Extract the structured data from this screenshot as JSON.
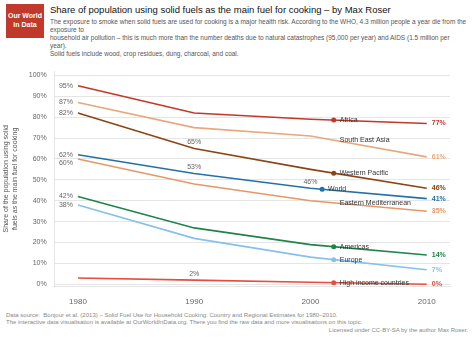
{
  "chart_data": {
    "type": "line",
    "title": "Share of population using solid fuels as the main fuel for cooking – by Max Roser",
    "subtitle": "The exposure to smoke when solid fuels are used for cooking is a major health risk. According to the WHO, 4.3 million people a year die from the exposure to\nhousehold air pollution – this is much more than the number deaths due to natural catastrophes (95,000 per year) and AIDS (1.5 million per year).\nSolid fuels include wood, crop residues, dung, charcoal, and coal.",
    "y_label": "Share of the population using solid fuels as the main fuel for cooking",
    "logo": {
      "text": "Our World\nin Data",
      "color": "#c0392b"
    },
    "footer_left": [
      "Data source:  Bonjour et al. (2013) – Solid Fuel Use for Household Cooking: Country and Regional Estimates for 1980–2010.",
      "The interactive data visualisation is available at OurWorldInData.org. There you find the raw data and more visualisations on this topic."
    ],
    "footer_right": "Licensed under CC-BY-SA by the author Max Roser.",
    "x": [
      1980,
      1990,
      2000,
      2010
    ],
    "series": [
      {
        "name": "Africa",
        "color": "#c0392b",
        "values": [
          95,
          82,
          79,
          77
        ]
      },
      {
        "name": "South East Asia",
        "color": "#e8a87c",
        "values": [
          87,
          75,
          71,
          61
        ]
      },
      {
        "name": "Western Pacific",
        "color": "#8B4513",
        "values": [
          82,
          65,
          55,
          46
        ]
      },
      {
        "name": "World",
        "color": "#2471a3",
        "values": [
          62,
          53,
          46,
          41
        ]
      },
      {
        "name": "Eastern Mediterranean",
        "color": "#e59866",
        "values": [
          60,
          48,
          40,
          35
        ]
      },
      {
        "name": "Americas",
        "color": "#1e8449",
        "values": [
          42,
          27,
          19,
          14
        ]
      },
      {
        "name": "Europe",
        "color": "#85c1e9",
        "values": [
          38,
          22,
          13,
          7
        ]
      },
      {
        "name": "High income countries",
        "color": "#e74c3c",
        "values": [
          3,
          2,
          1,
          0
        ]
      }
    ],
    "xlim": [
      1978,
      2012
    ],
    "xticks": [
      1980,
      1990,
      2000,
      2010
    ],
    "ylim": [
      -1,
      102
    ],
    "yticks": [
      {
        "value": 0,
        "label": "0%"
      },
      {
        "value": 10,
        "label": "10%"
      },
      {
        "value": 20,
        "label": "20%"
      },
      {
        "value": 30,
        "label": "30%"
      },
      {
        "value": 40,
        "label": "40%"
      },
      {
        "value": 50,
        "label": "50%"
      },
      {
        "value": 60,
        "label": "60%"
      },
      {
        "value": 70,
        "label": "70%"
      },
      {
        "value": 80,
        "label": "80%"
      },
      {
        "value": 90,
        "label": "90%"
      },
      {
        "value": 100,
        "label": "100%"
      }
    ],
    "grid": "y",
    "start_labels": [
      {
        "text": "95%",
        "x": 1980,
        "y": 95
      },
      {
        "text": "87%",
        "x": 1980,
        "y": 87
      },
      {
        "text": "82%",
        "x": 1980,
        "y": 82
      },
      {
        "text": "62%",
        "x": 1980,
        "y": 62
      },
      {
        "text": "60%",
        "x": 1980,
        "y": 60
      },
      {
        "text": "42%",
        "x": 1980,
        "y": 42
      },
      {
        "text": "38%",
        "x": 1980,
        "y": 38
      }
    ],
    "end_labels": [
      {
        "text": "77%",
        "x": 2010,
        "y": 77,
        "series": "Africa"
      },
      {
        "text": "61%",
        "x": 2010,
        "y": 61,
        "series": "South East Asia"
      },
      {
        "text": "46%",
        "x": 2010,
        "y": 46,
        "series": "Western Pacific"
      },
      {
        "text": "41%",
        "x": 2010,
        "y": 41,
        "series": "World"
      },
      {
        "text": "35%",
        "x": 2010,
        "y": 35,
        "series": "Eastern Mediterranean"
      },
      {
        "text": "14%",
        "x": 2010,
        "y": 14,
        "series": "Americas"
      },
      {
        "text": "7%",
        "x": 2010,
        "y": 7,
        "series": "Europe"
      },
      {
        "text": "0%",
        "x": 2010,
        "y": 0,
        "series": "High income countries"
      }
    ],
    "point_labels": [
      {
        "text": "53%",
        "x": 1990,
        "y": 53
      },
      {
        "text": "46%",
        "x": 2000,
        "y": 46
      },
      {
        "text": "65%",
        "x": 1990,
        "y": 65
      },
      {
        "text": "2%",
        "x": 1990,
        "y": 2
      }
    ],
    "series_labels": [
      {
        "text": "Africa",
        "x": 2002,
        "y": 78.6,
        "marker": "dot"
      },
      {
        "text": "South East Asia",
        "x": 2002,
        "y": 69
      },
      {
        "text": "Western Pacific",
        "x": 2002,
        "y": 53.2,
        "marker": "dot"
      },
      {
        "text": "World",
        "x": 2001,
        "y": 45.5,
        "marker": "dot"
      },
      {
        "text": "Eastern Mediterranean",
        "x": 2002,
        "y": 39
      },
      {
        "text": "Americas",
        "x": 2002,
        "y": 18,
        "marker": "dot"
      },
      {
        "text": "Europe",
        "x": 2002,
        "y": 11.8,
        "marker": "dot"
      },
      {
        "text": "High income countries",
        "x": 2002,
        "y": 0.8,
        "marker": "dot"
      }
    ]
  }
}
